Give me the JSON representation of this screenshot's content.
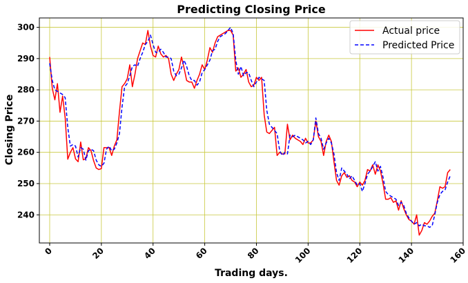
{
  "chart_data": {
    "type": "line",
    "title": "Predicting Closing Price",
    "xlabel": "Trading days.",
    "ylabel": "Closing Price",
    "xlim": [
      -4,
      160
    ],
    "ylim": [
      231,
      303
    ],
    "xticks": [
      0,
      20,
      40,
      60,
      80,
      100,
      120,
      140,
      160
    ],
    "yticks": [
      240,
      250,
      260,
      270,
      280,
      290,
      300
    ],
    "grid": true,
    "grid_color": "#c8c83c",
    "legend_position": "top-right",
    "series": [
      {
        "name": "Actual price",
        "color": "#ff0000",
        "dash": "solid",
        "values": [
          290.5,
          280.5,
          276.8,
          282.0,
          272.8,
          278.0,
          271.0,
          257.8,
          260.0,
          261.5,
          257.9,
          257.0,
          263.3,
          257.6,
          258.0,
          261.5,
          260.5,
          257.3,
          255.0,
          254.5,
          254.8,
          261.5,
          261.5,
          261.5,
          259.0,
          262.0,
          264.0,
          273.0,
          281.0,
          282.0,
          283.5,
          288.0,
          281.0,
          285.0,
          290.0,
          292.5,
          295.0,
          294.5,
          299.0,
          294.0,
          291.0,
          290.5,
          294.0,
          291.5,
          290.5,
          291.0,
          290.0,
          285.0,
          283.0,
          285.0,
          286.5,
          290.5,
          287.0,
          283.0,
          282.5,
          282.5,
          280.5,
          283.0,
          285.0,
          288.0,
          286.5,
          289.5,
          293.5,
          292.0,
          295.0,
          297.0,
          297.5,
          298.0,
          298.5,
          299.0,
          299.0,
          297.5,
          286.0,
          287.0,
          284.0,
          285.0,
          286.5,
          282.5,
          281.0,
          281.5,
          284.0,
          283.0,
          284.0,
          272.0,
          266.5,
          266.0,
          267.0,
          268.0,
          259.0,
          260.0,
          259.5,
          259.5,
          269.0,
          264.0,
          265.5,
          264.5,
          264.0,
          263.5,
          262.5,
          264.5,
          263.0,
          263.0,
          264.0,
          270.0,
          265.0,
          263.5,
          259.0,
          263.5,
          265.5,
          263.5,
          257.0,
          251.0,
          249.5,
          252.5,
          253.5,
          252.0,
          252.5,
          251.0,
          250.5,
          249.0,
          250.5,
          249.5,
          251.0,
          254.5,
          254.0,
          256.0,
          253.0,
          256.0,
          254.0,
          250.0,
          245.0,
          245.0,
          245.5,
          244.0,
          244.5,
          241.5,
          244.5,
          242.0,
          240.0,
          238.5,
          238.0,
          237.0,
          240.0,
          233.5,
          235.0,
          237.5,
          237.0,
          238.0,
          239.5,
          240.5,
          244.5,
          249.0,
          248.5,
          249.0,
          253.5,
          254.5
        ]
      },
      {
        "name": "Predicted Price",
        "color": "#0000ff",
        "dash": "dashed",
        "values": [
          288.5,
          283.0,
          280.0,
          279.5,
          279.0,
          278.5,
          277.5,
          268.0,
          262.0,
          262.5,
          262.0,
          258.5,
          261.5,
          261.0,
          257.5,
          260.5,
          261.0,
          260.5,
          257.5,
          256.0,
          255.5,
          256.5,
          261.0,
          262.0,
          260.5,
          261.0,
          263.0,
          266.0,
          274.5,
          281.0,
          282.0,
          284.5,
          287.5,
          288.0,
          287.5,
          290.0,
          292.0,
          294.5,
          295.5,
          297.5,
          294.5,
          292.0,
          292.0,
          293.0,
          292.0,
          290.5,
          290.5,
          290.0,
          286.0,
          284.5,
          285.0,
          287.0,
          289.5,
          287.5,
          284.5,
          283.0,
          283.0,
          281.5,
          282.5,
          285.5,
          286.5,
          288.0,
          289.5,
          292.5,
          293.0,
          295.5,
          297.0,
          297.5,
          298.0,
          299.0,
          300.0,
          298.0,
          289.5,
          285.0,
          287.5,
          284.5,
          285.5,
          285.5,
          283.0,
          281.0,
          282.5,
          284.0,
          283.5,
          283.0,
          273.5,
          269.0,
          268.0,
          267.0,
          266.0,
          260.5,
          259.0,
          260.0,
          259.5,
          265.5,
          265.0,
          265.5,
          265.0,
          264.5,
          264.0,
          263.0,
          263.5,
          262.5,
          264.0,
          271.0,
          266.0,
          264.5,
          261.0,
          263.0,
          264.5,
          263.0,
          259.5,
          253.5,
          251.0,
          255.0,
          254.0,
          253.0,
          251.5,
          252.5,
          251.0,
          249.5,
          250.0,
          247.5,
          250.0,
          253.0,
          254.0,
          255.5,
          257.0,
          254.0,
          255.5,
          252.0,
          247.5,
          246.5,
          246.0,
          245.5,
          245.0,
          243.0,
          244.0,
          243.0,
          240.5,
          239.0,
          238.0,
          237.0,
          237.5,
          236.5,
          237.0,
          236.5,
          236.5,
          236.0,
          236.5,
          240.0,
          244.0,
          246.5,
          247.5,
          248.0,
          250.5,
          252.5
        ]
      }
    ]
  }
}
